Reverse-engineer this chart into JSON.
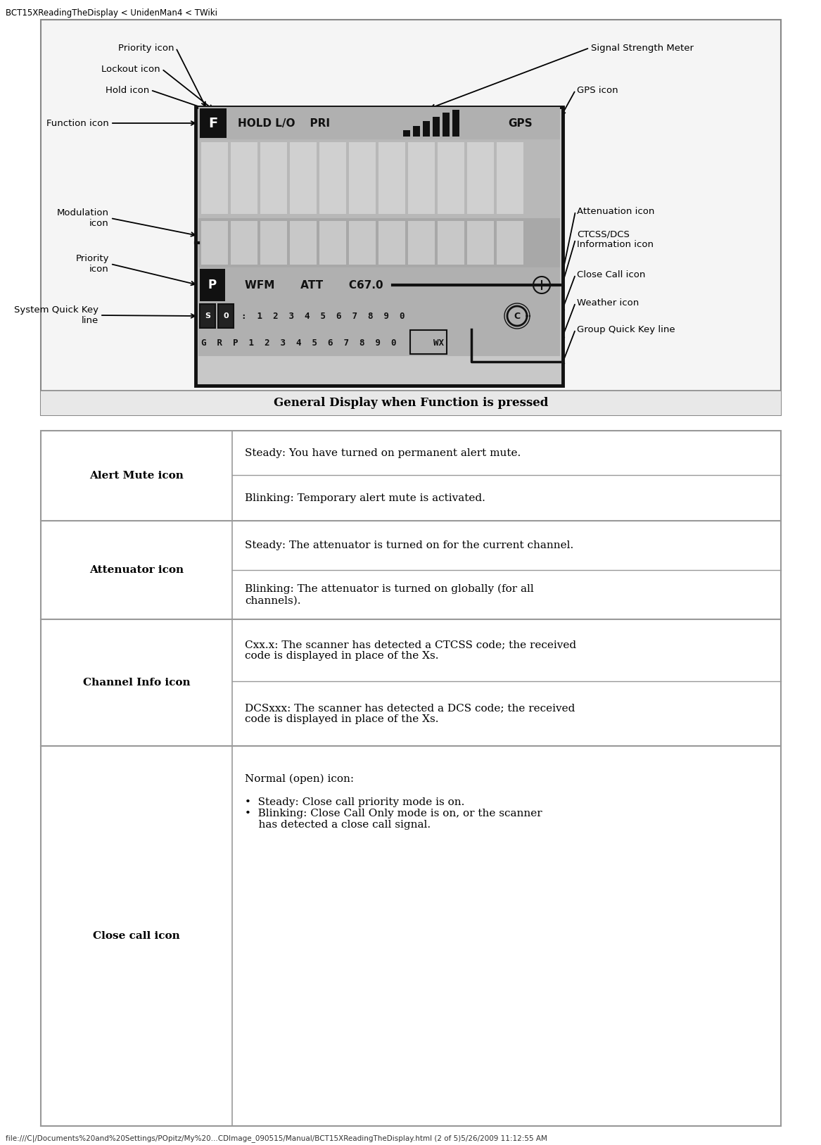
{
  "page_title": "BCT15XReadingTheDisplay < UnidenMan4 < TWiki",
  "footer_text": "file:///C|/Documents%20and%20Settings/POpitz/My%20...CDImage_090515/Manual/BCT15XReadingTheDisplay.html (2 of 5)5/26/2009 11:12:55 AM",
  "diagram_caption": "General Display when Function is pressed",
  "bg_color": "#ffffff",
  "table_rows": [
    {
      "icon_label": "Alert Mute icon",
      "descriptions": [
        "Steady: You have turned on permanent alert mute.",
        "Blinking: Temporary alert mute is activated."
      ]
    },
    {
      "icon_label": "Attenuator icon",
      "descriptions": [
        "Steady: The attenuator is turned on for the current channel.",
        "Blinking: The attenuator is turned on globally (for all\nchannels)."
      ]
    },
    {
      "icon_label": "Channel Info icon",
      "descriptions": [
        "Cxx.x: The scanner has detected a CTCSS code; the received\ncode is displayed in place of the Xs.",
        "DCSxxx: The scanner has detected a DCS code; the received\ncode is displayed in place of the Xs."
      ]
    },
    {
      "icon_label": "Close call icon",
      "descriptions": [
        "Normal (open) icon:\n\n•  Steady: Close call priority mode is on.\n•  Blinking: Close Call Only mode is on, or the scanner\n    has detected a close call signal."
      ]
    }
  ]
}
